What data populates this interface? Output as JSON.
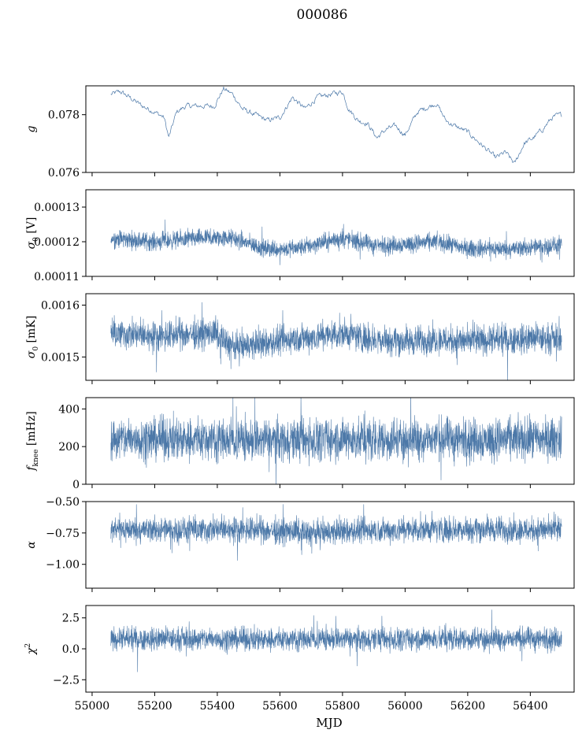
{
  "figure": {
    "title": "000086",
    "xlabel": "MJD",
    "series_color": "#4c78a8"
  },
  "chart_data": [
    {
      "type": "line",
      "ylabel": "g",
      "ylabel_sub": "",
      "ylabel_unit": "",
      "xlim": [
        54980,
        56540
      ],
      "ylim": [
        0.076,
        0.079
      ],
      "yticks": [
        {
          "v": 0.076,
          "label": "0.076"
        },
        {
          "v": 0.078,
          "label": "0.078"
        }
      ],
      "series": [
        {
          "x": [
            55060,
            55090,
            55120,
            55160,
            55200,
            55230,
            55245,
            55270,
            55300,
            55340,
            55390,
            55420,
            55450,
            55480,
            55520,
            55560,
            55600,
            55640,
            55680,
            55720,
            55760,
            55800,
            55820,
            55850,
            55880,
            55910,
            55940,
            55970,
            56000,
            56040,
            56080,
            56100,
            56130,
            56160,
            56200,
            56230,
            56260,
            56290,
            56320,
            56350,
            56380,
            56410,
            56440,
            56470,
            56500
          ],
          "y": [
            0.0787,
            0.0788,
            0.0786,
            0.0783,
            0.0781,
            0.0779,
            0.0772,
            0.0781,
            0.0783,
            0.0783,
            0.0783,
            0.0789,
            0.0787,
            0.0782,
            0.078,
            0.0778,
            0.0779,
            0.0786,
            0.0782,
            0.0786,
            0.0787,
            0.0788,
            0.0782,
            0.0778,
            0.0777,
            0.0772,
            0.0775,
            0.0776,
            0.0773,
            0.0781,
            0.0783,
            0.0784,
            0.0778,
            0.0776,
            0.0774,
            0.0771,
            0.0768,
            0.0765,
            0.0767,
            0.0763,
            0.077,
            0.0772,
            0.0775,
            0.0779,
            0.078
          ],
          "noise": 0.00012
        }
      ]
    },
    {
      "type": "line",
      "ylabel": "σ",
      "ylabel_sub": "0",
      "ylabel_unit": "[V]",
      "xlim": [
        54980,
        56540
      ],
      "ylim": [
        0.00011,
        0.000135
      ],
      "yticks": [
        {
          "v": 0.00011,
          "label": "0.00011"
        },
        {
          "v": 0.00012,
          "label": "0.00012"
        },
        {
          "v": 0.00013,
          "label": "0.00013"
        }
      ],
      "series": [
        {
          "x": [
            55060,
            55200,
            55350,
            55450,
            55550,
            55650,
            55800,
            55900,
            55950,
            56100,
            56200,
            56350,
            56500
          ],
          "y": [
            0.000121,
            0.00012,
            0.000121,
            0.000121,
            0.000118,
            0.000118,
            0.000121,
            0.000119,
            0.000119,
            0.00012,
            0.000118,
            0.000118,
            0.000119
          ],
          "band": 2.5e-06
        }
      ]
    },
    {
      "type": "line",
      "ylabel": "σ",
      "ylabel_sub": "0",
      "ylabel_unit": "[mK]",
      "xlim": [
        54980,
        56540
      ],
      "ylim": [
        0.001455,
        0.001622
      ],
      "yticks": [
        {
          "v": 0.0015,
          "label": "0.0015"
        },
        {
          "v": 0.0016,
          "label": "0.0016"
        }
      ],
      "series": [
        {
          "x": [
            55060,
            55200,
            55300,
            55390,
            55450,
            55550,
            55650,
            55800,
            55900,
            56000,
            56100,
            56200,
            56350,
            56500
          ],
          "y": [
            0.001545,
            0.00154,
            0.001545,
            0.001545,
            0.00152,
            0.001525,
            0.001535,
            0.001545,
            0.001535,
            0.00153,
            0.001535,
            0.00153,
            0.001535,
            0.001535
          ],
          "band": 2.8e-05
        }
      ]
    },
    {
      "type": "line",
      "ylabel": "f",
      "ylabel_sub": "knee",
      "ylabel_unit": "[mHz]",
      "xlim": [
        54980,
        56540
      ],
      "ylim": [
        0,
        460
      ],
      "yticks": [
        {
          "v": 0,
          "label": "0"
        },
        {
          "v": 200,
          "label": "200"
        },
        {
          "v": 400,
          "label": "400"
        }
      ],
      "series": [
        {
          "x": [
            55060,
            55300,
            55500,
            55700,
            55900,
            56100,
            56300,
            56500
          ],
          "y": [
            240,
            245,
            235,
            240,
            235,
            240,
            238,
            242
          ],
          "band": 110
        }
      ]
    },
    {
      "type": "line",
      "ylabel": "α",
      "ylabel_sub": "",
      "ylabel_unit": "",
      "xlim": [
        54980,
        56540
      ],
      "ylim": [
        -1.19,
        -0.5
      ],
      "yticks": [
        {
          "v": -1.0,
          "label": "−1.00"
        },
        {
          "v": -0.75,
          "label": "−0.75"
        },
        {
          "v": -0.5,
          "label": "−0.50"
        }
      ],
      "series": [
        {
          "x": [
            55060,
            55300,
            55500,
            55700,
            55900,
            56100,
            56300,
            56500
          ],
          "y": [
            -0.72,
            -0.73,
            -0.72,
            -0.75,
            -0.73,
            -0.72,
            -0.72,
            -0.73
          ],
          "band": 0.1
        }
      ]
    },
    {
      "type": "line",
      "ylabel": "χ",
      "ylabel_sub": "",
      "ylabel_unit": "",
      "ylabel_sup": "2",
      "xlim": [
        54980,
        56540
      ],
      "ylim": [
        -3.5,
        3.5
      ],
      "yticks": [
        {
          "v": -2.5,
          "label": "−2.5"
        },
        {
          "v": 0,
          "label": "0.0"
        },
        {
          "v": 2.5,
          "label": "2.5"
        }
      ],
      "series": [
        {
          "x": [
            55060,
            55300,
            55500,
            55700,
            55900,
            56100,
            56300,
            56500
          ],
          "y": [
            0.8,
            0.8,
            0.8,
            0.8,
            0.8,
            0.8,
            0.8,
            0.8
          ],
          "band": 0.9
        }
      ]
    }
  ],
  "xticks": [
    {
      "v": 55000,
      "label": "55000"
    },
    {
      "v": 55200,
      "label": "55200"
    },
    {
      "v": 55400,
      "label": "55400"
    },
    {
      "v": 55600,
      "label": "55600"
    },
    {
      "v": 55800,
      "label": "55800"
    },
    {
      "v": 56000,
      "label": "56000"
    },
    {
      "v": 56200,
      "label": "56200"
    },
    {
      "v": 56400,
      "label": "56400"
    }
  ]
}
